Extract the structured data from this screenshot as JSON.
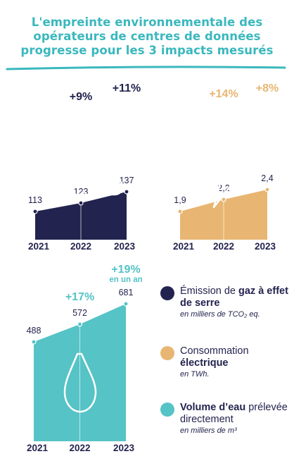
{
  "title": {
    "line1": "L'empreinte environnementale des",
    "line2": "opérateurs de centres de données",
    "line3": "progresse pour les 3 impacts mesurés"
  },
  "colors": {
    "title": "#3ab8bd",
    "navy": "#23234f",
    "sand": "#e8b672",
    "teal": "#56c3c6"
  },
  "chart_data": [
    {
      "type": "area",
      "icon": "co2-cloud-icon",
      "color": "#23234f",
      "categories": [
        "2021",
        "2022",
        "2023"
      ],
      "values": [
        113,
        123,
        137
      ],
      "value_labels": [
        "113",
        "123",
        "137"
      ],
      "change_labels": [
        "",
        "+9%",
        "+11%"
      ],
      "change_note": ""
    },
    {
      "type": "area",
      "icon": "lightning-icon",
      "color": "#e8b672",
      "categories": [
        "2021",
        "2022",
        "2023"
      ],
      "values": [
        1.9,
        2.2,
        2.4
      ],
      "value_labels": [
        "1,9",
        "2,2",
        "2,4"
      ],
      "change_labels": [
        "",
        "+14%",
        "+8%"
      ],
      "change_note": ""
    },
    {
      "type": "area",
      "icon": "water-drop-icon",
      "color": "#56c3c6",
      "categories": [
        "2021",
        "2022",
        "2023"
      ],
      "values": [
        488,
        572,
        681
      ],
      "value_labels": [
        "488",
        "572",
        "681"
      ],
      "change_labels": [
        "",
        "+17%",
        "+19%"
      ],
      "change_note": "en un an"
    }
  ],
  "legend": [
    {
      "color": "#23234f",
      "pre": "Émission de ",
      "bold": "gaz à effet de serre",
      "post": "",
      "unit": "en milliers de TCO₂ eq."
    },
    {
      "color": "#e8b672",
      "pre": "Consommation ",
      "bold": "électrique",
      "post": "",
      "unit": "en TWh."
    },
    {
      "color": "#56c3c6",
      "pre": "",
      "bold": "Volume d’eau",
      "post": " prélevée directement",
      "unit": "en milliers de m³"
    }
  ]
}
